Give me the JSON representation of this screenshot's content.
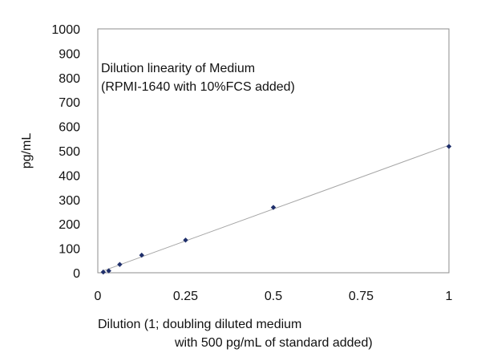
{
  "chart_data": {
    "type": "scatter",
    "annotation": {
      "line1": "Dilution linearity of Medium",
      "line2": "(RPMI-1640 with 10%FCS added)"
    },
    "ylabel": "pg/mL",
    "xlabel": {
      "line1": "Dilution (1; doubling diluted medium",
      "line2": "with 500 pg/mL of standard added)"
    },
    "xlim": [
      0,
      1
    ],
    "ylim": [
      0,
      1000
    ],
    "x_ticks": [
      "0",
      "0.25",
      "0.5",
      "0.75",
      "1"
    ],
    "x_tick_values": [
      0,
      0.25,
      0.5,
      0.75,
      1
    ],
    "y_ticks": [
      "0",
      "100",
      "200",
      "300",
      "400",
      "500",
      "600",
      "700",
      "800",
      "900",
      "1000"
    ],
    "y_tick_values": [
      0,
      100,
      200,
      300,
      400,
      500,
      600,
      700,
      800,
      900,
      1000
    ],
    "grid": false,
    "trendline": true,
    "marker_color": "#1f2f6b",
    "line_color": "#a6a6a6",
    "series": [
      {
        "points": [
          {
            "x": 0.0156,
            "y": 3
          },
          {
            "x": 0.03125,
            "y": 8
          },
          {
            "x": 0.0625,
            "y": 34
          },
          {
            "x": 0.125,
            "y": 72
          },
          {
            "x": 0.25,
            "y": 134
          },
          {
            "x": 0.5,
            "y": 268
          },
          {
            "x": 1.0,
            "y": 518
          }
        ]
      }
    ]
  }
}
